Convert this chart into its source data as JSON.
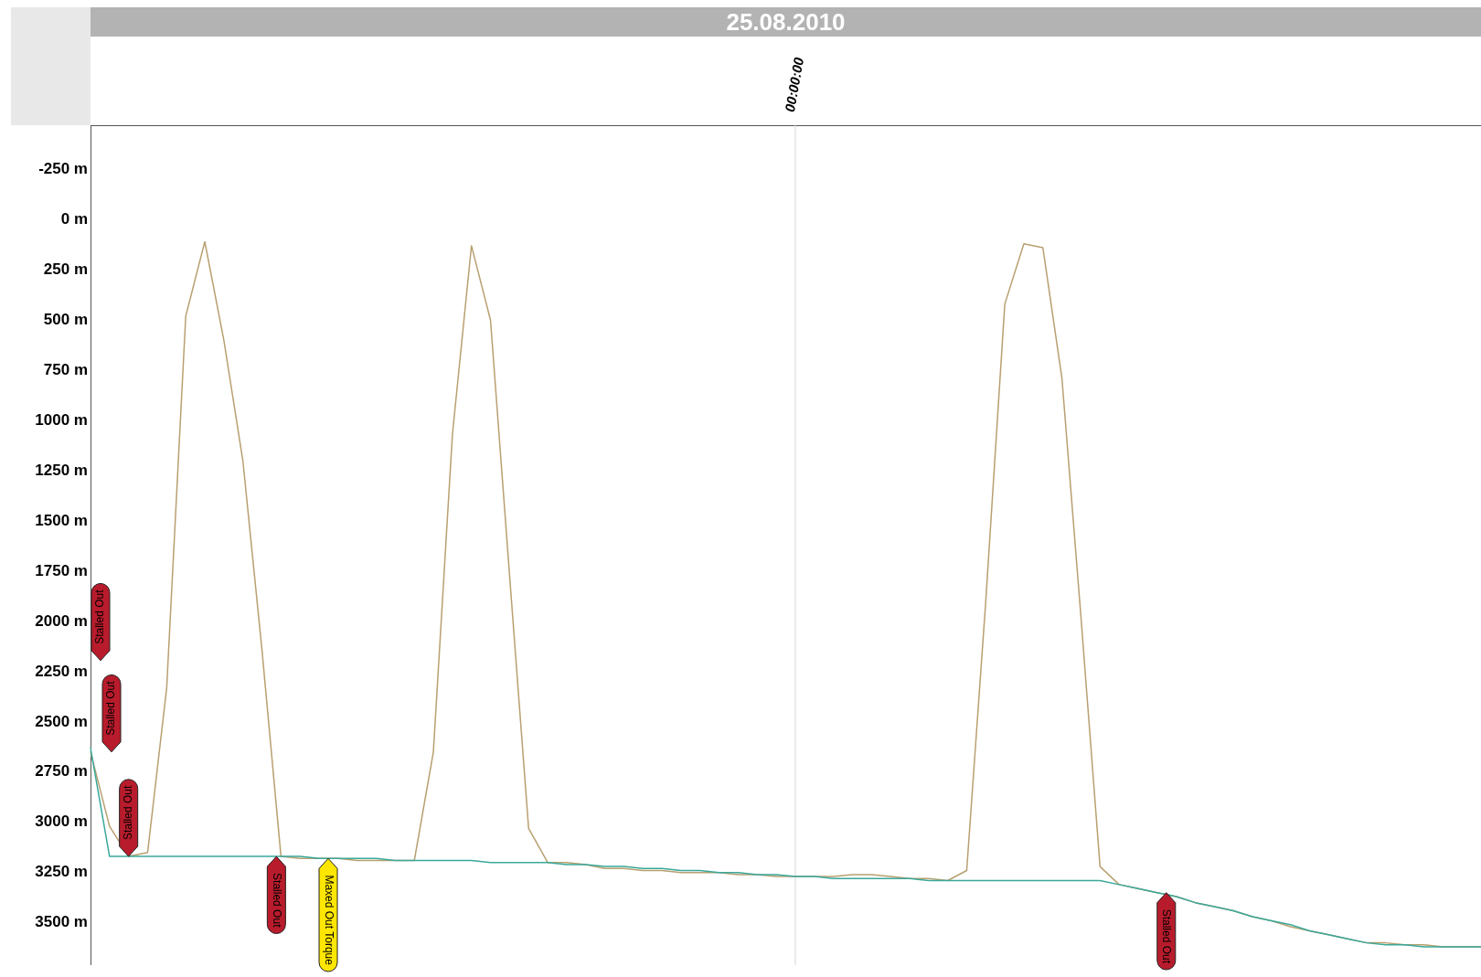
{
  "chart_data": {
    "type": "line",
    "title": "25.08.2010",
    "categories": [
      null,
      null,
      null,
      null,
      null,
      null,
      null,
      null,
      null,
      null,
      null,
      null,
      null,
      null,
      null,
      null,
      null,
      null,
      null,
      null,
      null,
      null,
      null,
      null,
      null,
      null,
      null,
      null,
      null,
      null,
      null,
      null,
      null,
      null,
      null,
      null,
      null,
      "00:00:00",
      null,
      null,
      null,
      null,
      null,
      null,
      null,
      null,
      null,
      null,
      null,
      null,
      null,
      null,
      null,
      null,
      null,
      null,
      null,
      null,
      null,
      null,
      null,
      null,
      null,
      null,
      null,
      null,
      null,
      null,
      null,
      null,
      null,
      null,
      null,
      null
    ],
    "ylim": [
      3710,
      -470
    ],
    "yticks": [
      {
        "value": -250,
        "label": "-250 m"
      },
      {
        "value": 0,
        "label": "0 m"
      },
      {
        "value": 250,
        "label": "250 m"
      },
      {
        "value": 500,
        "label": "500 m"
      },
      {
        "value": 750,
        "label": "750 m"
      },
      {
        "value": 1000,
        "label": "1000 m"
      },
      {
        "value": 1250,
        "label": "1250 m"
      },
      {
        "value": 1500,
        "label": "1500 m"
      },
      {
        "value": 1750,
        "label": "1750 m"
      },
      {
        "value": 2000,
        "label": "2000 m"
      },
      {
        "value": 2250,
        "label": "2250 m"
      },
      {
        "value": 2500,
        "label": "2500 m"
      },
      {
        "value": 2750,
        "label": "2750 m"
      },
      {
        "value": 3000,
        "label": "3000 m"
      },
      {
        "value": 3250,
        "label": "3250 m"
      },
      {
        "value": 3500,
        "label": "3500 m"
      }
    ],
    "ref_lines": [
      {
        "axis": "x",
        "value": "00:00:00",
        "color": "#d6d6d6"
      }
    ],
    "legend": false,
    "marker": "none",
    "line_style": "solid",
    "series": [
      {
        "color": "#b8a070",
        "values": [
          2650,
          3020,
          3170,
          3150,
          2330,
          480,
          110,
          600,
          1200,
          2140,
          3170,
          3180,
          3180,
          3180,
          3190,
          3190,
          3190,
          3190,
          2650,
          1070,
          130,
          500,
          1770,
          3030,
          3200,
          3200,
          3210,
          3230,
          3230,
          3240,
          3240,
          3250,
          3250,
          3250,
          3260,
          3260,
          3270,
          3270,
          3270,
          3270,
          3260,
          3260,
          3270,
          3280,
          3280,
          3290,
          3240,
          1900,
          420,
          120,
          140,
          790,
          1980,
          3220,
          3310,
          3330,
          3350,
          3370,
          3400,
          3420,
          3440,
          3470,
          3490,
          3520,
          3540,
          3560,
          3580,
          3600,
          3600,
          3610,
          3610,
          3620,
          3620,
          3620
        ]
      },
      {
        "color": "#3aa89a",
        "values": [
          2630,
          3170,
          3170,
          3170,
          3170,
          3170,
          3170,
          3170,
          3170,
          3170,
          3170,
          3170,
          3180,
          3180,
          3180,
          3180,
          3190,
          3190,
          3190,
          3190,
          3190,
          3200,
          3200,
          3200,
          3200,
          3210,
          3210,
          3220,
          3220,
          3230,
          3230,
          3240,
          3240,
          3250,
          3250,
          3260,
          3260,
          3270,
          3270,
          3280,
          3280,
          3280,
          3280,
          3280,
          3290,
          3290,
          3290,
          3290,
          3290,
          3290,
          3290,
          3290,
          3290,
          3290,
          3310,
          3330,
          3350,
          3370,
          3400,
          3420,
          3440,
          3470,
          3490,
          3510,
          3540,
          3560,
          3580,
          3600,
          3610,
          3610,
          3620,
          3620,
          3620,
          3620
        ]
      }
    ],
    "annotations": [
      "Stalled Out",
      "Stalled Out",
      "Stalled Out",
      "Stalled Out",
      "Maxed Out Torque",
      "Stalled Out"
    ]
  }
}
